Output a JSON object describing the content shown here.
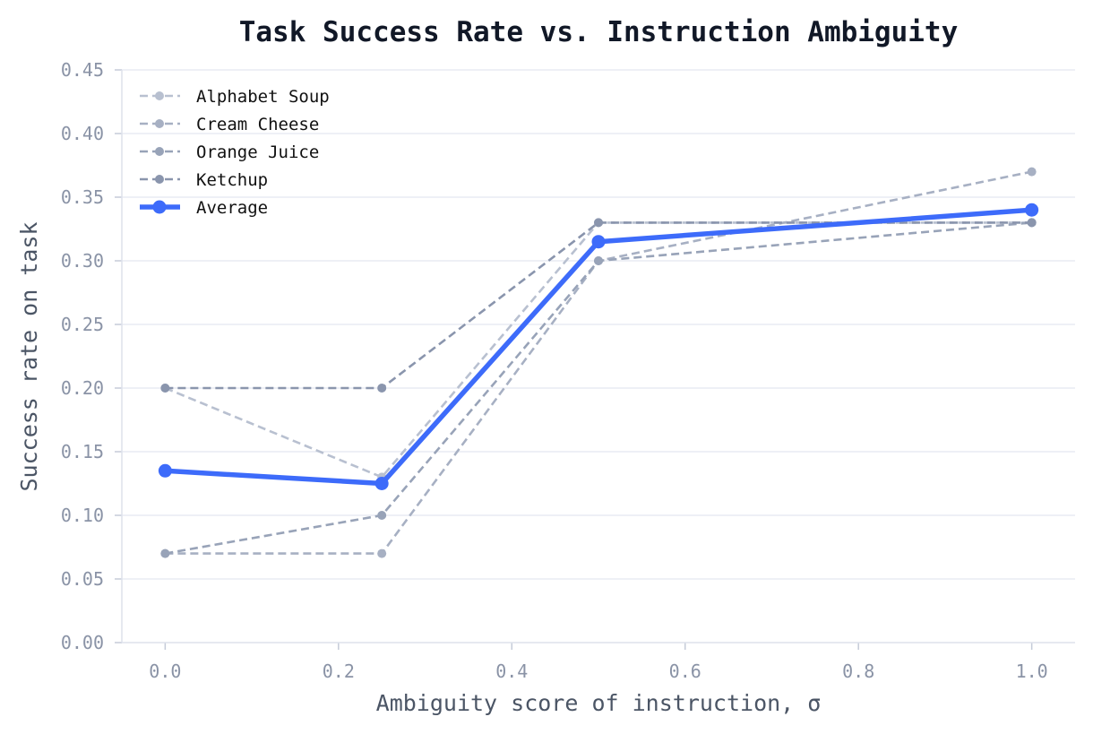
{
  "chart_data": {
    "type": "line",
    "title": "Task Success Rate vs. Instruction Ambiguity",
    "xlabel": "Ambiguity score of instruction, σ",
    "ylabel": "Success rate on task",
    "x": [
      0.0,
      0.25,
      0.5,
      1.0
    ],
    "xlim": [
      -0.05,
      1.05
    ],
    "ylim": [
      0.0,
      0.45
    ],
    "xticks": [
      0.0,
      0.2,
      0.4,
      0.6,
      0.8,
      1.0
    ],
    "xtick_labels": [
      "0.0",
      "0.2",
      "0.4",
      "0.6",
      "0.8",
      "1.0"
    ],
    "yticks": [
      0.0,
      0.05,
      0.1,
      0.15,
      0.2,
      0.25,
      0.3,
      0.35,
      0.4,
      0.45
    ],
    "ytick_labels": [
      "0.00",
      "0.05",
      "0.10",
      "0.15",
      "0.20",
      "0.25",
      "0.30",
      "0.35",
      "0.40",
      "0.45"
    ],
    "grid": "horizontal",
    "legend_position": "top-left",
    "series": [
      {
        "name": "Alphabet Soup",
        "values": [
          0.2,
          0.13,
          0.33,
          0.33
        ],
        "color": "#b8c0d0",
        "style": "dashed"
      },
      {
        "name": "Cream Cheese",
        "values": [
          0.07,
          0.07,
          0.3,
          0.37
        ],
        "color": "#a7b0c3",
        "style": "dashed"
      },
      {
        "name": "Orange Juice",
        "values": [
          0.07,
          0.1,
          0.3,
          0.33
        ],
        "color": "#98a3b8",
        "style": "dashed"
      },
      {
        "name": "Ketchup",
        "values": [
          0.2,
          0.2,
          0.33,
          0.33
        ],
        "color": "#8a95ad",
        "style": "dashed"
      },
      {
        "name": "Average",
        "values": [
          0.135,
          0.125,
          0.315,
          0.34
        ],
        "color": "#3d6bfa",
        "style": "solid"
      }
    ]
  }
}
